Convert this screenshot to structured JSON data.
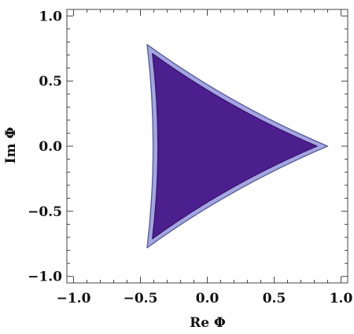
{
  "chart_data": {
    "type": "area",
    "title": "",
    "xlabel": "Re Φ",
    "ylabel": "Im Φ",
    "xlim": [
      -1.05,
      1.05
    ],
    "ylim": [
      -1.05,
      1.05
    ],
    "xticks": [
      -1.0,
      -0.5,
      0.0,
      0.5,
      1.0
    ],
    "xtick_labels": [
      "−1.0",
      "−0.5",
      "0.0",
      "0.5",
      "1.0"
    ],
    "yticks": [
      -1.0,
      -0.5,
      0.0,
      0.5,
      1.0
    ],
    "ytick_labels": [
      "−1.0",
      "−0.5",
      "0.0",
      "0.5",
      "1.0"
    ],
    "grid": false,
    "legend": "none",
    "series": [
      {
        "role": "outer-region",
        "color": "#a3a6e0",
        "edge_color": "#5a5f9a",
        "vertices": [
          [
            0.9,
            0.0
          ],
          [
            -0.45,
            0.78
          ],
          [
            -0.45,
            -0.78
          ]
        ],
        "curvature": 0.2
      },
      {
        "role": "inner-region",
        "color": "#4c1f8e",
        "edge_color": "#3a1470",
        "vertices": [
          [
            0.82,
            0.0
          ],
          [
            -0.41,
            0.71
          ],
          [
            -0.41,
            -0.71
          ]
        ],
        "curvature": 0.2
      }
    ]
  }
}
